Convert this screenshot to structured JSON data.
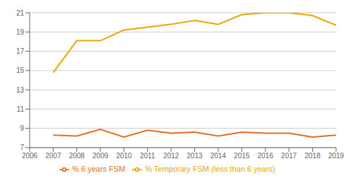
{
  "chart_data": {
    "type": "line",
    "x": [
      2006,
      2007,
      2008,
      2009,
      2010,
      2011,
      2012,
      2013,
      2014,
      2015,
      2016,
      2017,
      2018,
      2019
    ],
    "series": [
      {
        "name": "% 6 years FSM",
        "color": "#e07020",
        "values": [
          null,
          8.3,
          8.2,
          8.9,
          8.1,
          8.8,
          8.5,
          8.6,
          8.2,
          8.6,
          8.5,
          8.5,
          8.1,
          8.3
        ]
      },
      {
        "name": "% Temporary FSM (less than 6 years)",
        "color": "#e6a800",
        "values": [
          null,
          14.8,
          18.1,
          18.1,
          19.2,
          19.5,
          19.8,
          20.2,
          19.8,
          20.8,
          21.0,
          21.0,
          20.7,
          19.7
        ]
      }
    ],
    "xlim": [
      2006,
      2019
    ],
    "xticks": [
      2006,
      2007,
      2008,
      2009,
      2010,
      2011,
      2012,
      2013,
      2014,
      2015,
      2016,
      2017,
      2018,
      2019
    ],
    "ylim": [
      7,
      21
    ],
    "yticks": [
      7,
      9,
      11,
      13,
      15,
      17,
      19,
      21
    ],
    "grid": true,
    "legend": "bottom"
  }
}
